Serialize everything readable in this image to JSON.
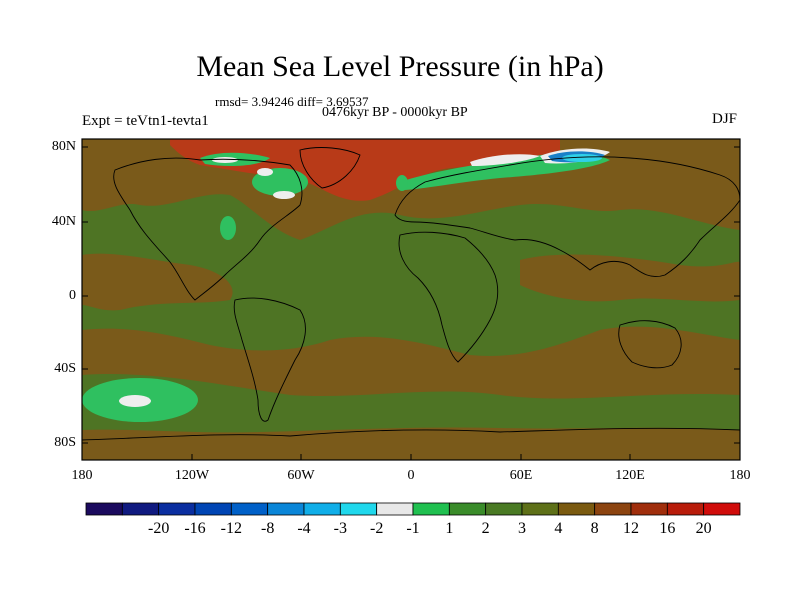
{
  "title": "Mean Sea Level Pressure (in hPa)",
  "stats": "rmsd= 3.94246 diff= 3.69537",
  "period": "0476kyr BP - 0000kyr BP",
  "experiment": "Expt = teVtn1-tevta1",
  "season": "DJF",
  "lat_labels": [
    "80N",
    "40N",
    "0",
    "40S",
    "80S"
  ],
  "lon_labels": [
    "180",
    "120W",
    "60W",
    "0",
    "60E",
    "120E",
    "180"
  ],
  "colorbar": {
    "colors": [
      "#1b0a5e",
      "#101a80",
      "#0a2ea0",
      "#0045b4",
      "#0060c8",
      "#0a86d8",
      "#10aee8",
      "#20d8ec",
      "#e8e8e8",
      "#20c050",
      "#3a8c2a",
      "#4a7a24",
      "#5e7018",
      "#7a5a10",
      "#8c4410",
      "#a02e0c",
      "#b81c0a",
      "#d00c0a"
    ],
    "labels": [
      "-20",
      "-16",
      "-12",
      "-8",
      "-4",
      "-3",
      "-2",
      "-1",
      "1",
      "2",
      "3",
      "4",
      "8",
      "12",
      "16",
      "20"
    ]
  },
  "map_colors": {
    "base": "#4e7424",
    "brown": "#7a5a1a",
    "red": "#b83a18",
    "light_green": "#2fc060",
    "white": "#eeeeee",
    "blue": "#1a80c8",
    "cyan": "#30d0e8"
  }
}
